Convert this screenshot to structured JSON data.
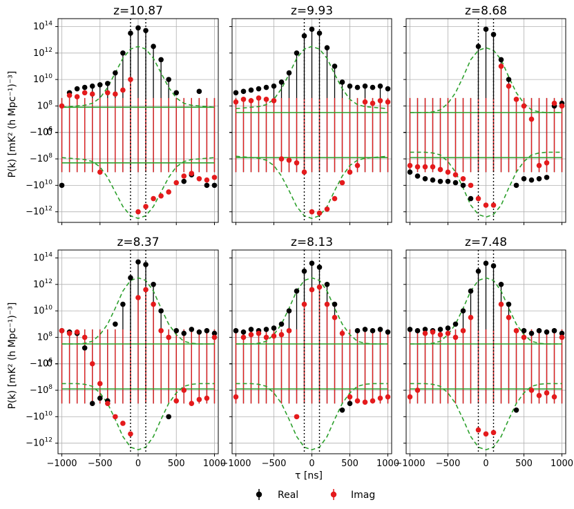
{
  "colors": {
    "real": "#000000",
    "imag": "#e41a1c",
    "model": "#2ca02c",
    "grid": "#b0b0b0"
  },
  "axes": {
    "xlabel": "τ [ns]",
    "ylabel": "P(k) [mK² (h Mpc⁻¹)⁻³]",
    "xticks": [
      -1000,
      -500,
      0,
      500,
      1000
    ],
    "xtick_labels": [
      "−1000",
      "−500",
      "0",
      "500",
      "1000"
    ],
    "ytick_labels": [
      "10^14",
      "10^12",
      "10^10",
      "10^8",
      "10^6",
      "0",
      "−10^6",
      "−10^8",
      "−10^10",
      "−10^12"
    ],
    "xlim": [
      -1050,
      1050
    ],
    "symlog_linthresh": 1000000,
    "delay_cut_ns": 100
  },
  "legend": {
    "real_label": "Real",
    "imag_label": "Imag"
  },
  "chart_data": {
    "type": "scatter",
    "yscale": "symlog",
    "x_tau_ns": [
      -1000,
      -900,
      -800,
      -700,
      -600,
      -500,
      -400,
      -300,
      -200,
      -100,
      0,
      100,
      200,
      300,
      400,
      500,
      600,
      700,
      800,
      900,
      1000
    ],
    "panels": [
      {
        "title": "z=10.87",
        "real_log": [
          -10.0,
          9.0,
          9.3,
          9.4,
          9.5,
          9.6,
          9.7,
          10.5,
          12.0,
          13.5,
          13.9,
          13.7,
          12.5,
          11.5,
          10.0,
          9.0,
          -9.7,
          -9.2,
          9.1,
          -10.0,
          -10.0
        ],
        "imag_log": [
          8.0,
          8.8,
          8.7,
          9.0,
          8.9,
          -9.0,
          9.0,
          8.9,
          9.2,
          10.0,
          -12.0,
          -11.6,
          -11.0,
          -10.8,
          -10.5,
          -9.8,
          -9.3,
          -9.1,
          -9.5,
          -9.6,
          -9.4
        ],
        "model_log": [
          7.9,
          7.95,
          8.0,
          8.05,
          8.2,
          8.6,
          9.4,
          10.5,
          11.6,
          12.3,
          12.5,
          12.3,
          11.6,
          10.5,
          9.4,
          8.6,
          8.2,
          8.05,
          8.0,
          7.95,
          7.9
        ],
        "noise_log": 7.9
      },
      {
        "title": "z=9.93",
        "real_log": [
          9.0,
          9.1,
          9.2,
          9.3,
          9.4,
          9.5,
          9.8,
          10.5,
          12.0,
          13.3,
          13.8,
          13.5,
          12.4,
          11.0,
          9.8,
          9.5,
          9.4,
          9.5,
          9.4,
          9.5,
          9.3
        ],
        "imag_log": [
          8.3,
          8.5,
          8.4,
          8.6,
          8.5,
          8.4,
          -8.0,
          -8.1,
          -8.3,
          -9.0,
          -12.0,
          -12.1,
          -11.8,
          -11.0,
          -9.8,
          -9.0,
          -8.5,
          8.3,
          8.2,
          8.4,
          8.3
        ],
        "model_log": [
          7.8,
          7.85,
          7.9,
          7.95,
          8.1,
          8.5,
          9.3,
          10.4,
          11.6,
          12.3,
          12.5,
          12.3,
          11.6,
          10.4,
          9.3,
          8.5,
          8.1,
          7.95,
          7.9,
          7.85,
          7.8
        ],
        "noise_log": 7.5
      },
      {
        "title": "z=8.68",
        "real_log": [
          -9.0,
          -9.3,
          -9.5,
          -9.6,
          -9.7,
          -9.7,
          -9.8,
          -10.0,
          -11.0,
          12.5,
          13.8,
          13.4,
          11.5,
          10.0,
          -10.0,
          -9.5,
          -9.6,
          -9.5,
          -9.4,
          8.0,
          8.2
        ],
        "imag_log": [
          -8.5,
          -8.6,
          -8.6,
          -8.6,
          -8.8,
          -9.0,
          -9.2,
          -9.5,
          -10.0,
          -11.0,
          -11.5,
          -11.5,
          11.0,
          9.5,
          8.5,
          8.0,
          7.0,
          -8.5,
          -8.3,
          8.2,
          8.0
        ],
        "model_log": [
          7.5,
          7.5,
          7.5,
          7.55,
          7.7,
          8.2,
          9.0,
          10.2,
          11.5,
          12.2,
          12.4,
          12.2,
          11.5,
          10.2,
          9.0,
          8.2,
          7.7,
          7.55,
          7.5,
          7.5,
          7.5
        ],
        "noise_log": 7.5
      },
      {
        "title": "z=8.37",
        "real_log": [
          8.5,
          8.4,
          8.3,
          7.2,
          -9.0,
          -8.6,
          -8.8,
          9.0,
          10.5,
          12.5,
          13.7,
          13.5,
          12.0,
          10.0,
          -10.0,
          8.5,
          8.3,
          8.6,
          8.4,
          8.5,
          8.3
        ],
        "imag_log": [
          8.5,
          8.3,
          8.4,
          8.0,
          -5.8,
          -7.5,
          -9.0,
          -10.0,
          -10.5,
          -11.3,
          11.0,
          11.6,
          10.5,
          8.5,
          8.0,
          -8.8,
          -8.0,
          -9.0,
          -8.7,
          -8.6,
          8.0
        ],
        "model_log": [
          7.5,
          7.5,
          7.5,
          7.55,
          7.7,
          8.2,
          9.0,
          10.2,
          11.5,
          12.3,
          12.5,
          12.3,
          11.5,
          10.2,
          9.0,
          8.2,
          7.7,
          7.55,
          7.5,
          7.5,
          7.5
        ],
        "noise_log": 7.5
      },
      {
        "title": "z=8.13",
        "real_log": [
          8.5,
          8.4,
          8.6,
          8.5,
          8.6,
          8.7,
          9.0,
          10.0,
          11.5,
          13.0,
          13.6,
          13.3,
          12.0,
          10.5,
          -9.5,
          -9.0,
          8.5,
          8.6,
          8.5,
          8.6,
          8.4
        ],
        "imag_log": [
          -8.5,
          8.0,
          8.2,
          8.3,
          8.0,
          8.1,
          8.2,
          8.5,
          -10.0,
          10.5,
          11.6,
          11.8,
          10.5,
          9.5,
          8.3,
          -8.5,
          -8.8,
          -8.9,
          -8.8,
          -8.6,
          -8.5
        ],
        "model_log": [
          7.5,
          7.5,
          7.5,
          7.55,
          7.7,
          8.2,
          9.0,
          10.2,
          11.5,
          12.3,
          12.5,
          12.3,
          11.5,
          10.2,
          9.0,
          8.2,
          7.7,
          7.55,
          7.5,
          7.5,
          7.5
        ],
        "noise_log": 7.5
      },
      {
        "title": "z=7.48",
        "real_log": [
          8.6,
          8.5,
          8.6,
          8.5,
          8.6,
          8.7,
          9.0,
          10.0,
          11.5,
          13.0,
          13.6,
          13.4,
          12.0,
          10.5,
          -9.5,
          8.5,
          8.3,
          8.5,
          8.4,
          8.5,
          8.3
        ],
        "imag_log": [
          -8.5,
          -8.0,
          8.3,
          8.4,
          8.2,
          8.3,
          8.0,
          8.5,
          9.5,
          -11.0,
          -11.3,
          -11.2,
          10.5,
          9.5,
          8.5,
          8.0,
          -8.0,
          -8.4,
          -8.2,
          -8.5,
          8.0
        ],
        "model_log": [
          7.5,
          7.5,
          7.5,
          7.55,
          7.7,
          8.2,
          9.0,
          10.2,
          11.5,
          12.3,
          12.5,
          12.3,
          11.5,
          10.2,
          9.0,
          8.2,
          7.7,
          7.55,
          7.5,
          7.5,
          7.5
        ],
        "noise_log": 7.5
      }
    ]
  }
}
